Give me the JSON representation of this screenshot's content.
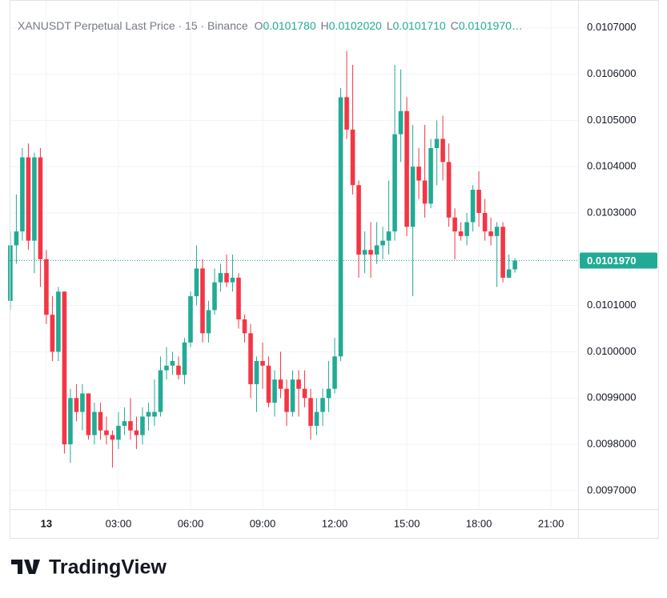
{
  "chart_data": {
    "type": "candlestick",
    "header": {
      "symbol": "XANUSDT Perpetual Last Price · 15 · Binance",
      "ohlc": [
        {
          "key": "O",
          "value": "0.0101780"
        },
        {
          "key": "H",
          "value": "0.0102020"
        },
        {
          "key": "L",
          "value": "0.0101710"
        },
        {
          "key": "C",
          "value": "0.0101970…"
        }
      ]
    },
    "up_color": "#22ab94",
    "down_color": "#f23645",
    "grid": true,
    "x": [
      -1.5,
      -1.25,
      -1,
      -0.75,
      -0.5,
      -0.25,
      0,
      0.25,
      0.5,
      0.75,
      1,
      1.25,
      1.5,
      1.75,
      2,
      2.25,
      2.5,
      2.75,
      3,
      3.25,
      3.5,
      3.75,
      4,
      4.25,
      4.5,
      4.75,
      5,
      5.25,
      5.5,
      5.75,
      6,
      6.25,
      6.5,
      6.75,
      7,
      7.25,
      7.5,
      7.75,
      8,
      8.25,
      8.5,
      8.75,
      9,
      9.25,
      9.5,
      9.75,
      10,
      10.25,
      10.5,
      10.75,
      11,
      11.25,
      11.5,
      11.75,
      12,
      12.25,
      12.5,
      12.75,
      13,
      13.25,
      13.5,
      13.75,
      14,
      14.25,
      14.5,
      14.75,
      15,
      15.25,
      15.5,
      15.75,
      16,
      16.25,
      16.5,
      16.75,
      17,
      17.25,
      17.5,
      17.75,
      18,
      18.25,
      18.5,
      18.75,
      19,
      19.25,
      19.5
    ],
    "open": [
      0.01011,
      0.01023,
      0.01026,
      0.01042,
      0.01024,
      0.01042,
      0.0102,
      0.01008,
      0.01,
      0.01013,
      0.0098,
      0.0099,
      0.00987,
      0.00991,
      0.00982,
      0.00987,
      0.00983,
      0.00982,
      0.00981,
      0.00984,
      0.00985,
      0.00983,
      0.00982,
      0.00986,
      0.00986,
      0.00987,
      0.00996,
      0.00997,
      0.00997,
      0.00995,
      0.01002,
      0.01012,
      0.01018,
      0.01004,
      0.01009,
      0.01015,
      0.01017,
      0.01015,
      0.01016,
      0.01007,
      0.01004,
      0.00993,
      0.00998,
      0.00997,
      0.00989,
      0.00994,
      0.00992,
      0.00987,
      0.00994,
      0.00992,
      0.0099,
      0.00984,
      0.00987,
      0.0099,
      0.00992,
      0.00999,
      0.01055,
      0.01048,
      0.01036,
      0.01021,
      0.01022,
      0.01021,
      0.01023,
      0.01024,
      0.01026,
      0.01047,
      0.01052,
      0.01027,
      0.0104,
      0.01037,
      0.01032,
      0.01044,
      0.01046,
      0.01041,
      0.01029,
      0.01026,
      0.01025,
      0.01028,
      0.01035,
      0.0103,
      0.01026,
      0.01025,
      0.01027,
      0.01016,
      0.010178
    ],
    "high": [
      0.01026,
      0.01034,
      0.01044,
      0.01045,
      0.01043,
      0.01044,
      0.01022,
      0.01012,
      0.01014,
      0.01013,
      0.00992,
      0.00993,
      0.00993,
      0.00991,
      0.00989,
      0.00989,
      0.00986,
      0.00983,
      0.00987,
      0.00988,
      0.0099,
      0.00986,
      0.00988,
      0.00989,
      0.00994,
      0.00999,
      0.01001,
      0.01,
      0.00999,
      0.01003,
      0.01013,
      0.01023,
      0.0102,
      0.01011,
      0.01018,
      0.01019,
      0.01021,
      0.01021,
      0.01017,
      0.01008,
      0.01006,
      0.00999,
      0.01002,
      0.00999,
      0.00996,
      0.01,
      0.00994,
      0.00996,
      0.00996,
      0.00996,
      0.00992,
      0.0099,
      0.00992,
      0.00998,
      0.01003,
      0.01057,
      0.01065,
      0.01062,
      0.01037,
      0.01026,
      0.01028,
      0.01028,
      0.01027,
      0.01037,
      0.01062,
      0.01061,
      0.01055,
      0.01049,
      0.01044,
      0.01049,
      0.01046,
      0.0105,
      0.01051,
      0.01045,
      0.01031,
      0.01028,
      0.0103,
      0.01036,
      0.01039,
      0.01033,
      0.01029,
      0.01028,
      0.01028,
      0.01021,
      0.010202
    ],
    "low": [
      0.01009,
      0.01019,
      0.01024,
      0.01022,
      0.01017,
      0.01014,
      0.01006,
      0.00998,
      0.00998,
      0.00978,
      0.00976,
      0.00985,
      0.00983,
      0.00981,
      0.0098,
      0.00981,
      0.0098,
      0.00975,
      0.00979,
      0.00982,
      0.00981,
      0.00979,
      0.0098,
      0.00983,
      0.00984,
      0.00986,
      0.00994,
      0.00995,
      0.00994,
      0.00993,
      0.01001,
      0.0101,
      0.01002,
      0.01002,
      0.01008,
      0.01013,
      0.01014,
      0.01013,
      0.01005,
      0.01002,
      0.0099,
      0.00987,
      0.00992,
      0.00988,
      0.00986,
      0.0099,
      0.00984,
      0.00986,
      0.00986,
      0.00988,
      0.00981,
      0.00982,
      0.00984,
      0.00987,
      0.00991,
      0.00998,
      0.01046,
      0.01034,
      0.01016,
      0.01017,
      0.01016,
      0.01019,
      0.0102,
      0.01021,
      0.01024,
      0.01041,
      0.01025,
      0.01012,
      0.01033,
      0.01029,
      0.01031,
      0.01036,
      0.01037,
      0.01027,
      0.0102,
      0.01024,
      0.01023,
      0.01026,
      0.01027,
      0.01024,
      0.01023,
      0.01014,
      0.01015,
      0.01016,
      0.010171
    ],
    "close": [
      0.01023,
      0.01026,
      0.01042,
      0.01024,
      0.01042,
      0.0102,
      0.01008,
      0.01,
      0.01013,
      0.0098,
      0.0099,
      0.00987,
      0.00991,
      0.00982,
      0.00987,
      0.00983,
      0.00982,
      0.00981,
      0.00984,
      0.00985,
      0.00983,
      0.00982,
      0.00986,
      0.00987,
      0.00987,
      0.00996,
      0.00997,
      0.00998,
      0.00995,
      0.01002,
      0.01012,
      0.01018,
      0.01004,
      0.01009,
      0.01015,
      0.01017,
      0.01015,
      0.01016,
      0.01007,
      0.01004,
      0.00993,
      0.00998,
      0.00997,
      0.00989,
      0.00994,
      0.00992,
      0.00987,
      0.00994,
      0.00992,
      0.0099,
      0.00984,
      0.00987,
      0.0099,
      0.00992,
      0.00999,
      0.01055,
      0.01048,
      0.01036,
      0.01021,
      0.01022,
      0.01021,
      0.01023,
      0.01024,
      0.01026,
      0.01047,
      0.01052,
      0.01027,
      0.0104,
      0.01037,
      0.01032,
      0.01044,
      0.01046,
      0.01041,
      0.01029,
      0.01026,
      0.01025,
      0.01028,
      0.01035,
      0.0103,
      0.01026,
      0.01025,
      0.01027,
      0.01016,
      0.010178,
      0.010197
    ],
    "last_price": 0.010197,
    "last_price_label": "0.0101970",
    "xlim": [
      -1.53,
      22.13
    ],
    "xticks": [
      {
        "value": 0,
        "label": "13"
      },
      {
        "value": 3,
        "label": "03:00"
      },
      {
        "value": 6,
        "label": "06:00"
      },
      {
        "value": 9,
        "label": "09:00"
      },
      {
        "value": 12,
        "label": "12:00"
      },
      {
        "value": 15,
        "label": "15:00"
      },
      {
        "value": 18,
        "label": "18:00"
      },
      {
        "value": 21,
        "label": "21:00"
      }
    ],
    "ylim": [
      0.00966,
      0.01076
    ],
    "yticks": [
      {
        "value": 0.0097,
        "label": "0.0097000"
      },
      {
        "value": 0.0098,
        "label": "0.0098000"
      },
      {
        "value": 0.0099,
        "label": "0.0099000"
      },
      {
        "value": 0.01,
        "label": "0.0100000"
      },
      {
        "value": 0.0101,
        "label": "0.0101000"
      },
      {
        "value": 0.0102,
        "label": "0.0102000"
      },
      {
        "value": 0.0103,
        "label": "0.0103000"
      },
      {
        "value": 0.0104,
        "label": "0.0104000"
      },
      {
        "value": 0.0105,
        "label": "0.0105000"
      },
      {
        "value": 0.0106,
        "label": "0.0106000"
      },
      {
        "value": 0.0107,
        "label": "0.0107000"
      }
    ],
    "logo": "TradingView"
  }
}
